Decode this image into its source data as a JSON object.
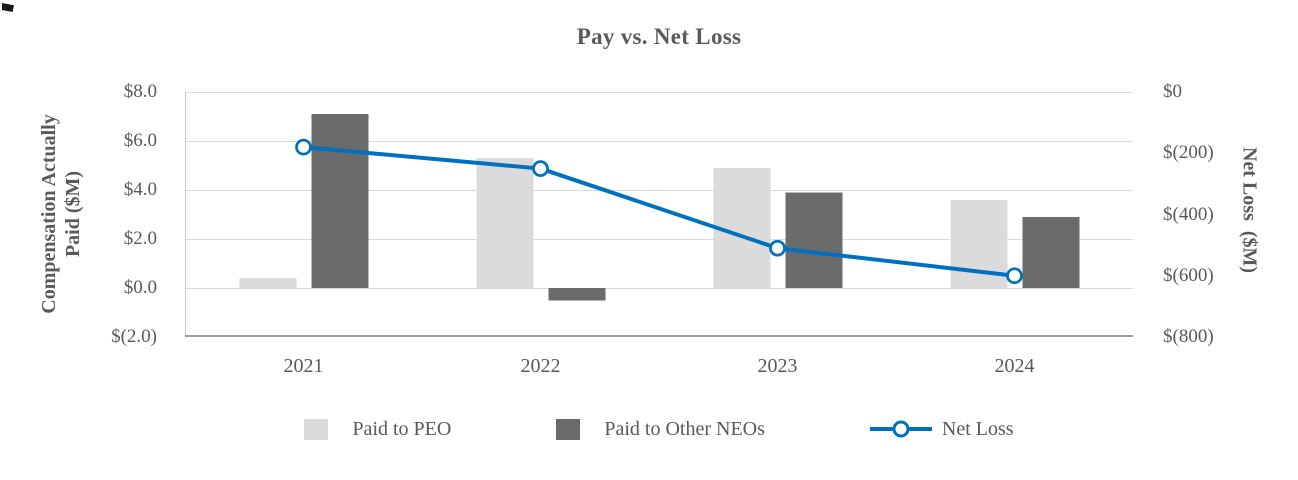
{
  "chart_data": {
    "type": "combo-bar-line",
    "title": "Pay vs. Net Loss",
    "categories": [
      "2021",
      "2022",
      "2023",
      "2024"
    ],
    "bar_series": [
      {
        "name": "Paid to PEO",
        "color": "#dbdbdb",
        "axis": "left",
        "values": [
          0.4,
          5.3,
          4.9,
          3.6
        ]
      },
      {
        "name": "Paid to Other NEOs",
        "color": "#6b6b6b",
        "axis": "left",
        "values": [
          7.1,
          -0.5,
          3.9,
          2.9
        ]
      }
    ],
    "line_series": {
      "name": "Net Loss",
      "color": "#0070c0",
      "axis": "right",
      "values": [
        -180,
        -250,
        -510,
        -600
      ]
    },
    "left_axis": {
      "title_lines": [
        "Compensation Actually",
        "Paid ($M)"
      ],
      "ticks": [
        "$8.0",
        "$6.0",
        "$4.0",
        "$2.0",
        "$0.0",
        "$(2.0)"
      ],
      "min": -2.0,
      "max": 8.0
    },
    "right_axis": {
      "title": "Net Loss  ($M)",
      "ticks": [
        "$0",
        "$(200)",
        "$(400)",
        "$(600)",
        "$(800)"
      ],
      "min": -800,
      "max": 0
    },
    "legend": [
      {
        "label": "Paid to PEO",
        "swatch": "bar",
        "color": "#dbdbdb"
      },
      {
        "label": "Paid to Other NEOs",
        "swatch": "bar",
        "color": "#6b6b6b"
      },
      {
        "label": "Net Loss",
        "swatch": "line-marker",
        "color": "#0070c0"
      }
    ],
    "grid": true,
    "legend_position": "bottom",
    "colors": {
      "gridline": "#d9d9d9",
      "left_axis_line": "#c9c9c9",
      "bottom_axis_line": "#9e9e9e",
      "text": "#595959",
      "marker_fill": "#ffffff"
    }
  }
}
